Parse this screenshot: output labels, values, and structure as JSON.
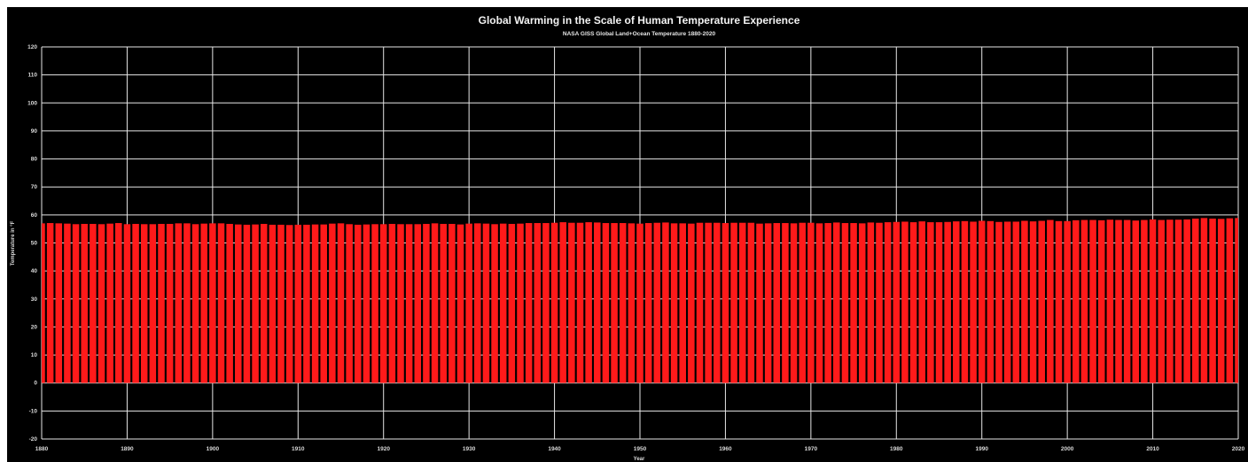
{
  "chart_data": {
    "type": "bar",
    "title": "Global Warming in the Scale of Human Temperature Experience",
    "subtitle": "NASA GISS Global Land+Ocean Temperature 1880-2020",
    "xlabel": "Year",
    "ylabel": "Temperature in °F",
    "xlim": [
      1880,
      2020
    ],
    "ylim": [
      -20,
      120
    ],
    "x_ticks": [
      1880,
      1890,
      1900,
      1910,
      1920,
      1930,
      1940,
      1950,
      1960,
      1970,
      1980,
      1990,
      2000,
      2010,
      2020
    ],
    "y_ticks": [
      -20,
      -10,
      0,
      10,
      20,
      30,
      40,
      50,
      60,
      70,
      80,
      90,
      100,
      110,
      120
    ],
    "grid": true,
    "legend": "none",
    "colors": {
      "background": "#000000",
      "bars": "#ff1a1a",
      "grid": "#e6e6e6",
      "text": "#d9d9d9"
    },
    "series": [
      {
        "x": [
          1880,
          1881,
          1882,
          1883,
          1884,
          1885,
          1886,
          1887,
          1888,
          1889,
          1890,
          1891,
          1892,
          1893,
          1894,
          1895,
          1896,
          1897,
          1898,
          1899,
          1900,
          1901,
          1902,
          1903,
          1904,
          1905,
          1906,
          1907,
          1908,
          1909,
          1910,
          1911,
          1912,
          1913,
          1914,
          1915,
          1916,
          1917,
          1918,
          1919,
          1920,
          1921,
          1922,
          1923,
          1924,
          1925,
          1926,
          1927,
          1928,
          1929,
          1930,
          1931,
          1932,
          1933,
          1934,
          1935,
          1936,
          1937,
          1938,
          1939,
          1940,
          1941,
          1942,
          1943,
          1944,
          1945,
          1946,
          1947,
          1948,
          1949,
          1950,
          1951,
          1952,
          1953,
          1954,
          1955,
          1956,
          1957,
          1958,
          1959,
          1960,
          1961,
          1962,
          1963,
          1964,
          1965,
          1966,
          1967,
          1968,
          1969,
          1970,
          1971,
          1972,
          1973,
          1974,
          1975,
          1976,
          1977,
          1978,
          1979,
          1980,
          1981,
          1982,
          1983,
          1984,
          1985,
          1986,
          1987,
          1988,
          1989,
          1990,
          1991,
          1992,
          1993,
          1994,
          1995,
          1996,
          1997,
          1998,
          1999,
          2000,
          2001,
          2002,
          2003,
          2004,
          2005,
          2006,
          2007,
          2008,
          2009,
          2010,
          2011,
          2012,
          2013,
          2014,
          2015,
          2016,
          2017,
          2018,
          2019,
          2020
        ],
        "values": [
          57.0,
          57.1,
          57.0,
          56.9,
          56.7,
          56.8,
          56.8,
          56.7,
          56.9,
          57.1,
          56.7,
          56.8,
          56.7,
          56.7,
          56.8,
          56.8,
          57.0,
          57.0,
          56.7,
          56.9,
          57.0,
          57.0,
          56.8,
          56.6,
          56.5,
          56.6,
          56.8,
          56.5,
          56.5,
          56.4,
          56.5,
          56.5,
          56.6,
          56.6,
          56.9,
          57.0,
          56.7,
          56.5,
          56.6,
          56.7,
          56.7,
          56.8,
          56.7,
          56.7,
          56.7,
          56.8,
          57.0,
          56.8,
          56.8,
          56.6,
          56.9,
          57.0,
          56.9,
          56.7,
          56.9,
          56.8,
          56.9,
          57.1,
          57.1,
          57.1,
          57.2,
          57.4,
          57.2,
          57.2,
          57.4,
          57.3,
          57.1,
          57.1,
          57.1,
          57.0,
          56.9,
          57.1,
          57.2,
          57.3,
          57.0,
          57.0,
          56.9,
          57.2,
          57.2,
          57.2,
          57.1,
          57.2,
          57.2,
          57.2,
          56.9,
          57.0,
          57.1,
          57.1,
          57.0,
          57.2,
          57.2,
          57.0,
          57.1,
          57.3,
          57.1,
          57.1,
          57.0,
          57.3,
          57.2,
          57.4,
          57.5,
          57.6,
          57.4,
          57.7,
          57.4,
          57.4,
          57.5,
          57.7,
          57.8,
          57.6,
          57.9,
          57.8,
          57.5,
          57.6,
          57.6,
          57.9,
          57.7,
          57.9,
          58.2,
          57.8,
          57.8,
          58.1,
          58.2,
          58.2,
          58.1,
          58.3,
          58.2,
          58.2,
          58.0,
          58.2,
          58.4,
          58.2,
          58.3,
          58.3,
          58.4,
          58.7,
          58.9,
          58.7,
          58.6,
          58.8,
          58.9
        ]
      }
    ]
  }
}
